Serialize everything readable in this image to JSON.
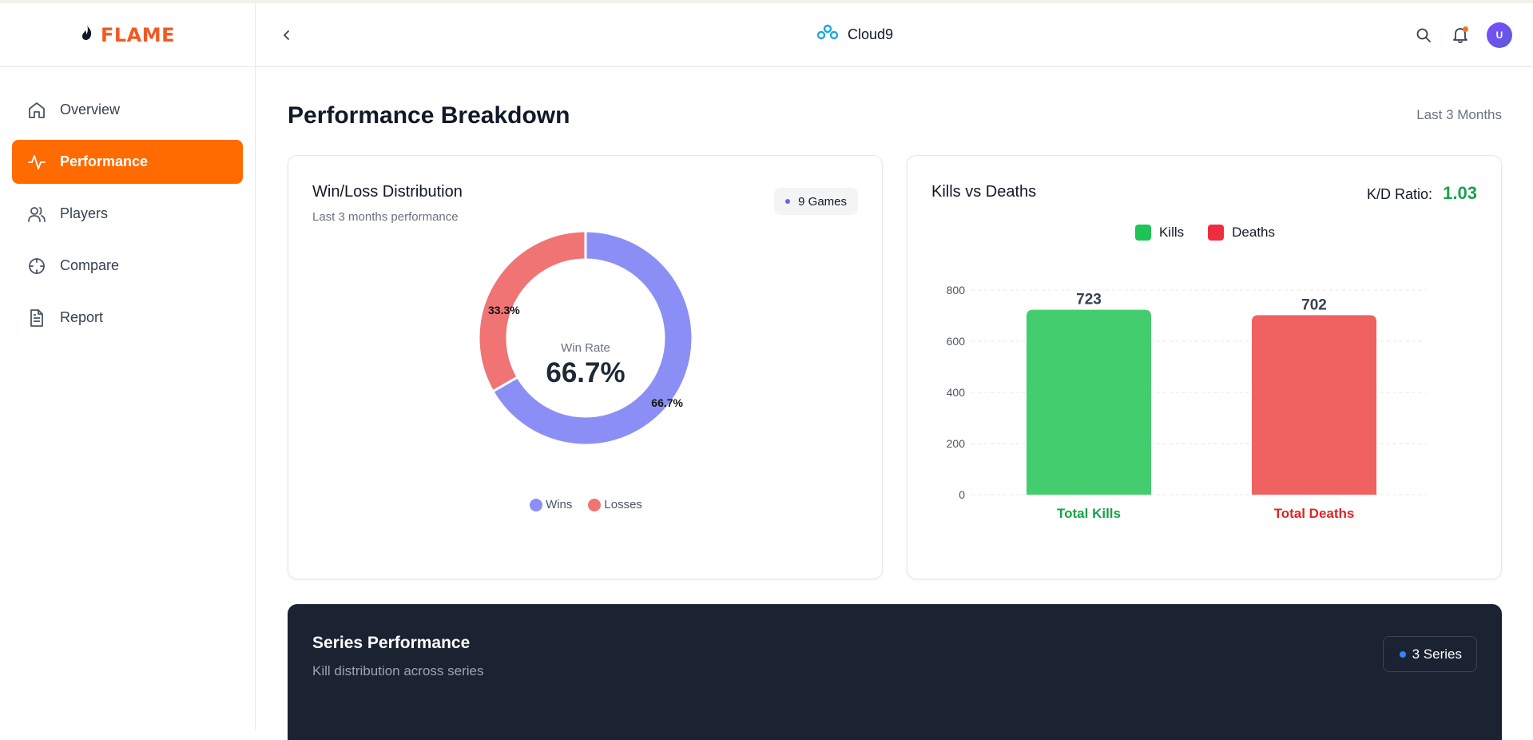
{
  "brand": {
    "name": "FLAME"
  },
  "sidebar": {
    "items": [
      {
        "label": "Overview",
        "icon": "home-icon",
        "active": false
      },
      {
        "label": "Performance",
        "icon": "activity-icon",
        "active": true
      },
      {
        "label": "Players",
        "icon": "users-icon",
        "active": false
      },
      {
        "label": "Compare",
        "icon": "crosshair-icon",
        "active": false
      },
      {
        "label": "Report",
        "icon": "document-icon",
        "active": false
      }
    ]
  },
  "header": {
    "team_name": "Cloud9",
    "avatar_initial": "U",
    "accent": "#ff6b00"
  },
  "main": {
    "title": "Performance Breakdown",
    "range": "Last 3 Months"
  },
  "winloss": {
    "title": "Win/Loss Distribution",
    "subtitle": "Last 3 months performance",
    "games_badge": "9 Games",
    "center_label": "Win Rate",
    "center_value": "66.7%",
    "wins_pct_label": "66.7%",
    "losses_pct_label": "33.3%",
    "legend_wins": "Wins",
    "legend_losses": "Losses"
  },
  "killsdeaths": {
    "title": "Kills vs Deaths",
    "kd_label": "K/D Ratio:",
    "kd_value": "1.03",
    "legend_kills": "Kills",
    "legend_deaths": "Deaths"
  },
  "series": {
    "title": "Series Performance",
    "subtitle": "Kill distribution across series",
    "badge": "3 Series"
  },
  "chart_data": [
    {
      "type": "pie",
      "categories": [
        "Wins",
        "Losses"
      ],
      "values": [
        66.7,
        33.3
      ],
      "colors": [
        "#8b8ff5",
        "#f07474"
      ],
      "donut": true
    },
    {
      "type": "bar",
      "categories": [
        "Total Kills",
        "Total Deaths"
      ],
      "values": [
        723,
        702
      ],
      "colors": [
        "#44cd6f",
        "#f06161"
      ],
      "ylim": [
        0,
        800
      ],
      "yticks": [
        0,
        200,
        400,
        600,
        800
      ],
      "grid": true,
      "legend": "top-center"
    }
  ]
}
